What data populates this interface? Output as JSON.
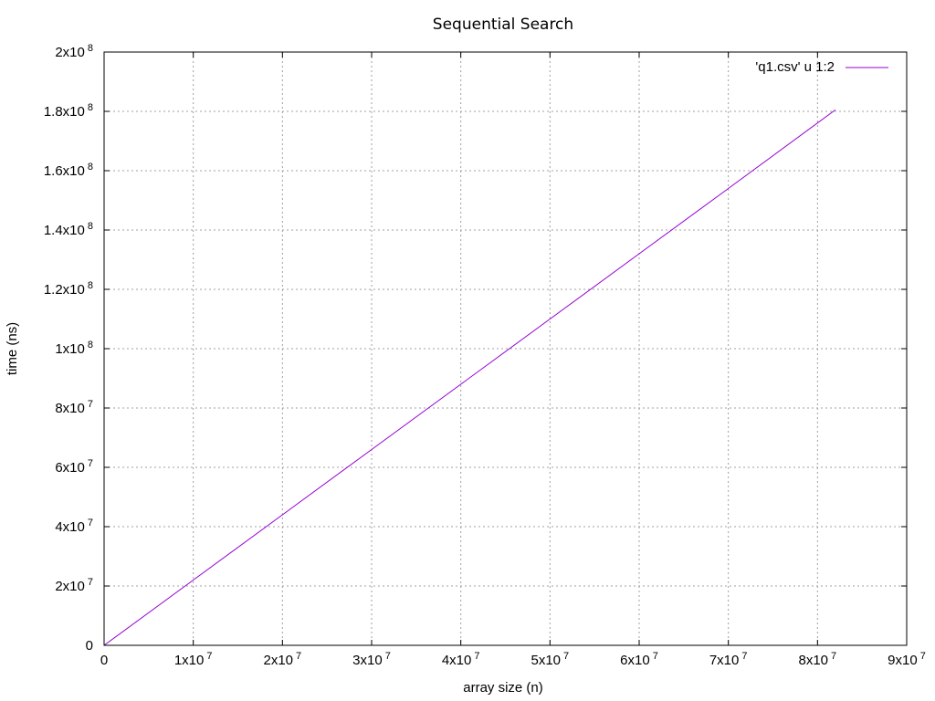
{
  "chart_data": {
    "type": "line",
    "title": "Sequential Search",
    "xlabel": "array size (n)",
    "ylabel": "time (ns)",
    "xlim": [
      0,
      90000000
    ],
    "ylim": [
      0,
      200000000
    ],
    "grid": true,
    "legend_position": "top-right",
    "x_ticks": [
      {
        "value": 0,
        "base": "0",
        "exp": ""
      },
      {
        "value": 10000000,
        "base": "1x10",
        "exp": "7"
      },
      {
        "value": 20000000,
        "base": "2x10",
        "exp": "7"
      },
      {
        "value": 30000000,
        "base": "3x10",
        "exp": "7"
      },
      {
        "value": 40000000,
        "base": "4x10",
        "exp": "7"
      },
      {
        "value": 50000000,
        "base": "5x10",
        "exp": "7"
      },
      {
        "value": 60000000,
        "base": "6x10",
        "exp": "7"
      },
      {
        "value": 70000000,
        "base": "7x10",
        "exp": "7"
      },
      {
        "value": 80000000,
        "base": "8x10",
        "exp": "7"
      },
      {
        "value": 90000000,
        "base": "9x10",
        "exp": "7"
      }
    ],
    "y_ticks": [
      {
        "value": 0,
        "base": "0",
        "exp": ""
      },
      {
        "value": 20000000,
        "base": "2x10",
        "exp": "7"
      },
      {
        "value": 40000000,
        "base": "4x10",
        "exp": "7"
      },
      {
        "value": 60000000,
        "base": "6x10",
        "exp": "7"
      },
      {
        "value": 80000000,
        "base": "8x10",
        "exp": "7"
      },
      {
        "value": 100000000,
        "base": "1x10",
        "exp": "8"
      },
      {
        "value": 120000000,
        "base": "1.2x10",
        "exp": "8"
      },
      {
        "value": 140000000,
        "base": "1.4x10",
        "exp": "8"
      },
      {
        "value": 160000000,
        "base": "1.6x10",
        "exp": "8"
      },
      {
        "value": 180000000,
        "base": "1.8x10",
        "exp": "8"
      },
      {
        "value": 200000000,
        "base": "2x10",
        "exp": "8"
      }
    ],
    "series": [
      {
        "name": "'q1.csv' u 1:2",
        "color": "#9400d3",
        "x": [
          0,
          10000000,
          20000000,
          30000000,
          40000000,
          50000000,
          60000000,
          70000000,
          82000000
        ],
        "y": [
          0,
          22000000,
          44000000,
          66000000,
          88000000,
          110000000,
          132000000,
          154000000,
          180500000
        ]
      }
    ]
  }
}
